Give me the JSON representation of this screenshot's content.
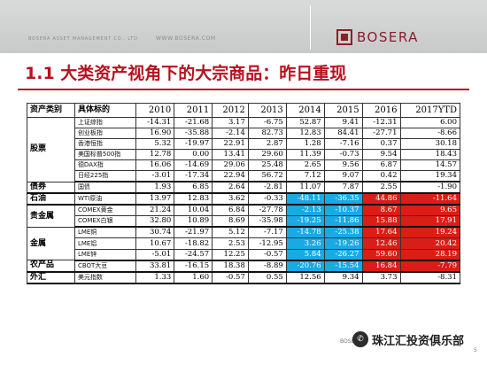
{
  "header": {
    "company": "BOSERA ASSET MANAGEMENT CO., LTD",
    "url": "WWW.BOSERA.COM",
    "logo_text": "BOSERA"
  },
  "title": "1.1 大类资产视角下的大宗商品：昨日重现",
  "table": {
    "col_category": "资产类别",
    "col_target": "具体标的",
    "years": [
      "2010",
      "2011",
      "2012",
      "2013",
      "2014",
      "2015",
      "2016",
      "2017YTD"
    ],
    "groups": [
      {
        "category": "股票",
        "rows": [
          {
            "label": "上证综指",
            "values": [
              "-14.31",
              "-21.68",
              "3.17",
              "-6.75",
              "52.87",
              "9.41",
              "-12.31",
              "6.00"
            ]
          },
          {
            "label": "创业板指",
            "values": [
              "16.90",
              "-35.88",
              "-2.14",
              "82.73",
              "12.83",
              "84.41",
              "-27.71",
              "-8.66"
            ]
          },
          {
            "label": "香港恒指",
            "values": [
              "5.32",
              "-19.97",
              "22.91",
              "2.87",
              "1.28",
              "-7.16",
              "0.37",
              "30.18"
            ]
          },
          {
            "label": "美国标普500指",
            "values": [
              "12.78",
              "0.00",
              "13.41",
              "29.60",
              "11.39",
              "-0.73",
              "9.54",
              "18.43"
            ]
          },
          {
            "label": "德DAX指",
            "values": [
              "16.06",
              "-14.69",
              "29.06",
              "25.48",
              "2.65",
              "9.56",
              "6.87",
              "14.57"
            ]
          },
          {
            "label": "日经225指",
            "values": [
              "-3.01",
              "-17.34",
              "22.94",
              "56.72",
              "7.12",
              "9.07",
              "0.42",
              "19.34"
            ]
          }
        ]
      },
      {
        "category": "债券",
        "rows": [
          {
            "label": "国债",
            "values": [
              "1.93",
              "6.85",
              "2.64",
              "-2.81",
              "11.07",
              "7.87",
              "2.55",
              "-1.90"
            ]
          }
        ]
      },
      {
        "category": "石油",
        "rows": [
          {
            "label": "WTI原油",
            "values": [
              "13.97",
              "12.83",
              "3.62",
              "-0.33",
              "-48.11",
              "-36.35",
              "44.86",
              "-11.64"
            ]
          }
        ]
      },
      {
        "category": "贵金属",
        "rows": [
          {
            "label": "COMEX黄金",
            "values": [
              "21.24",
              "10.04",
              "6.84",
              "-27.78",
              "-2.13",
              "-10.37",
              "8.67",
              "9.65"
            ]
          },
          {
            "label": "COMEX白银",
            "values": [
              "32.80",
              "10.89",
              "8.69",
              "-35.98",
              "-19.25",
              "-11.86",
              "15.88",
              "17.91"
            ]
          }
        ]
      },
      {
        "category": "金属",
        "rows": [
          {
            "label": "LME铜",
            "values": [
              "30.74",
              "-21.97",
              "5.12",
              "-7.17",
              "-14.78",
              "-25.38",
              "17.64",
              "19.24"
            ]
          },
          {
            "label": "LME铝",
            "values": [
              "10.67",
              "-18.82",
              "2.53",
              "-12.95",
              "3.26",
              "-19.26",
              "12.46",
              "20.42"
            ]
          },
          {
            "label": "LME锌",
            "values": [
              "-5.01",
              "-24.57",
              "12.25",
              "-0.57",
              "5.84",
              "-26.27",
              "59.60",
              "28.19"
            ]
          }
        ]
      },
      {
        "category": "农产品",
        "rows": [
          {
            "label": "CBOT大豆",
            "values": [
              "33.81",
              "-16.15",
              "18.38",
              "-8.89",
              "-20.76",
              "-15.54",
              "16.84",
              "-7.79"
            ]
          }
        ]
      },
      {
        "category": "外汇",
        "rows": [
          {
            "label": "美元指数",
            "values": [
              "1.33",
              "1.60",
              "-0.57",
              "0.55",
              "12.56",
              "9.34",
              "3.73",
              "-8.31"
            ]
          }
        ]
      }
    ],
    "highlight_colors": {
      "blue": "#19a9e3",
      "red": "#d91e18"
    }
  },
  "footer": {
    "brand": "BOSERA",
    "watermark_icon": "wechat-icon",
    "watermark": "珠江汇投资俱乐部",
    "page_number": "5"
  }
}
